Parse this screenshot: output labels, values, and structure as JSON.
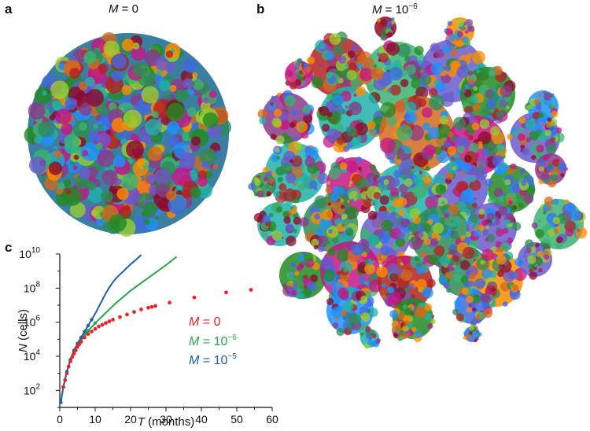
{
  "panels": {
    "a": {
      "letter": "a",
      "title_var": "M",
      "title_rest": " = 0"
    },
    "b": {
      "letter": "b",
      "title_var": "M",
      "title_rest": " = 10",
      "title_exp": "−6"
    },
    "c": {
      "letter": "c"
    }
  },
  "colors": {
    "m0": "#e8262a",
    "m1e6": "#2ea44a",
    "m1e5": "#1f5fa8",
    "blob_palette": [
      "#2e8b57",
      "#3cb371",
      "#1e90ff",
      "#4169e1",
      "#c71585",
      "#8b3a8b",
      "#d2691e",
      "#b22222",
      "#20b2aa",
      "#6a5acd",
      "#9acd32",
      "#228b22",
      "#8b0a2a",
      "#ff8c00"
    ]
  },
  "chart_data": {
    "type": "scatter",
    "xlabel_var": "T",
    "xlabel_rest": " (months)",
    "ylabel_var": "N",
    "ylabel_rest": " (cells)",
    "xlim": [
      0,
      60
    ],
    "ylim_log10": [
      1,
      10
    ],
    "x_ticks": [
      "0",
      "10",
      "20",
      "30",
      "40",
      "50",
      "60"
    ],
    "y_ticks": [
      {
        "base": "10",
        "exp": "2"
      },
      {
        "base": "10",
        "exp": "4"
      },
      {
        "base": "10",
        "exp": "6"
      },
      {
        "base": "10",
        "exp": "8"
      },
      {
        "base": "10",
        "exp": "10"
      }
    ],
    "series": [
      {
        "name": "M = 0",
        "legend_var": "M",
        "legend_rest": " = 0",
        "legend_exp": "",
        "color_key": "m0",
        "style": "points",
        "points": [
          [
            1,
            2.2
          ],
          [
            1.5,
            2.6
          ],
          [
            2,
            3.0
          ],
          [
            2.5,
            3.4
          ],
          [
            3,
            3.7
          ],
          [
            3.5,
            3.95
          ],
          [
            4,
            4.15
          ],
          [
            4.5,
            4.35
          ],
          [
            5,
            4.55
          ],
          [
            5.5,
            4.7
          ],
          [
            6,
            4.85
          ],
          [
            7,
            5.1
          ],
          [
            8,
            5.3
          ],
          [
            9,
            5.45
          ],
          [
            10,
            5.6
          ],
          [
            11,
            5.75
          ],
          [
            12,
            5.85
          ],
          [
            13,
            5.95
          ],
          [
            14,
            6.05
          ],
          [
            15,
            6.15
          ],
          [
            17,
            6.3
          ],
          [
            19,
            6.45
          ],
          [
            21,
            6.6
          ],
          [
            23,
            6.75
          ],
          [
            25,
            6.85
          ],
          [
            26,
            6.9
          ],
          [
            27,
            6.95
          ],
          [
            31,
            7.15
          ],
          [
            38,
            7.45
          ],
          [
            47,
            7.75
          ],
          [
            54,
            7.9
          ]
        ]
      },
      {
        "name": "M = 10^-6",
        "legend_var": "M",
        "legend_rest": " = 10",
        "legend_exp": "−6",
        "color_key": "m1e6",
        "style": "line",
        "points": [
          [
            0.3,
            1.3
          ],
          [
            1,
            2.2
          ],
          [
            2,
            3.1
          ],
          [
            3,
            3.8
          ],
          [
            4,
            4.3
          ],
          [
            5,
            4.65
          ],
          [
            6,
            4.95
          ],
          [
            7,
            5.25
          ],
          [
            8,
            5.5
          ],
          [
            10,
            5.95
          ],
          [
            12,
            6.35
          ],
          [
            14,
            6.75
          ],
          [
            16,
            7.15
          ],
          [
            18,
            7.5
          ],
          [
            20,
            7.85
          ],
          [
            22,
            8.15
          ],
          [
            24,
            8.45
          ],
          [
            26,
            8.75
          ],
          [
            28,
            9.05
          ],
          [
            30,
            9.35
          ],
          [
            33,
            9.85
          ]
        ]
      },
      {
        "name": "M = 10^-5",
        "legend_var": "M",
        "legend_rest": " = 10",
        "legend_exp": "−5",
        "color_key": "m1e5",
        "style": "line",
        "points": [
          [
            0.3,
            1.3
          ],
          [
            1,
            2.2
          ],
          [
            2,
            3.1
          ],
          [
            3,
            3.8
          ],
          [
            4,
            4.35
          ],
          [
            5,
            4.75
          ],
          [
            6,
            5.1
          ],
          [
            7,
            5.45
          ],
          [
            8,
            5.8
          ],
          [
            9,
            6.15
          ],
          [
            10,
            6.5
          ],
          [
            11,
            6.9
          ],
          [
            12,
            7.3
          ],
          [
            13,
            7.7
          ],
          [
            14,
            8.05
          ],
          [
            15,
            8.35
          ],
          [
            16,
            8.6
          ],
          [
            18,
            9.0
          ],
          [
            20,
            9.4
          ],
          [
            22,
            9.75
          ],
          [
            23,
            9.95
          ]
        ]
      }
    ]
  }
}
